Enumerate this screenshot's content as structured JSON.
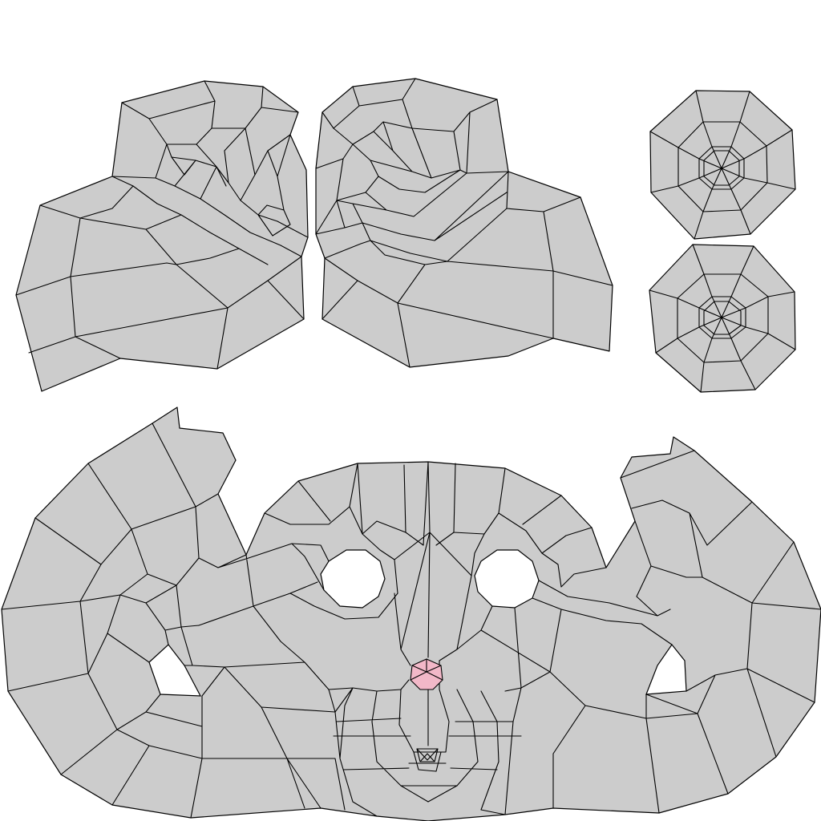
{
  "colors": {
    "background": "#ffffff",
    "island_fill": "#cccccc",
    "edge": "#000000",
    "selected_face": "#f2b8c8"
  },
  "islands": [
    {
      "name": "uv-island-left-ear",
      "kind": "ear"
    },
    {
      "name": "uv-island-right-ear",
      "kind": "ear"
    },
    {
      "name": "uv-island-eye-top",
      "kind": "eye-disc"
    },
    {
      "name": "uv-island-eye-bottom",
      "kind": "eye-disc"
    },
    {
      "name": "uv-island-face",
      "kind": "face"
    }
  ],
  "selection": {
    "face": "nose-tip",
    "color_name": "pink"
  }
}
